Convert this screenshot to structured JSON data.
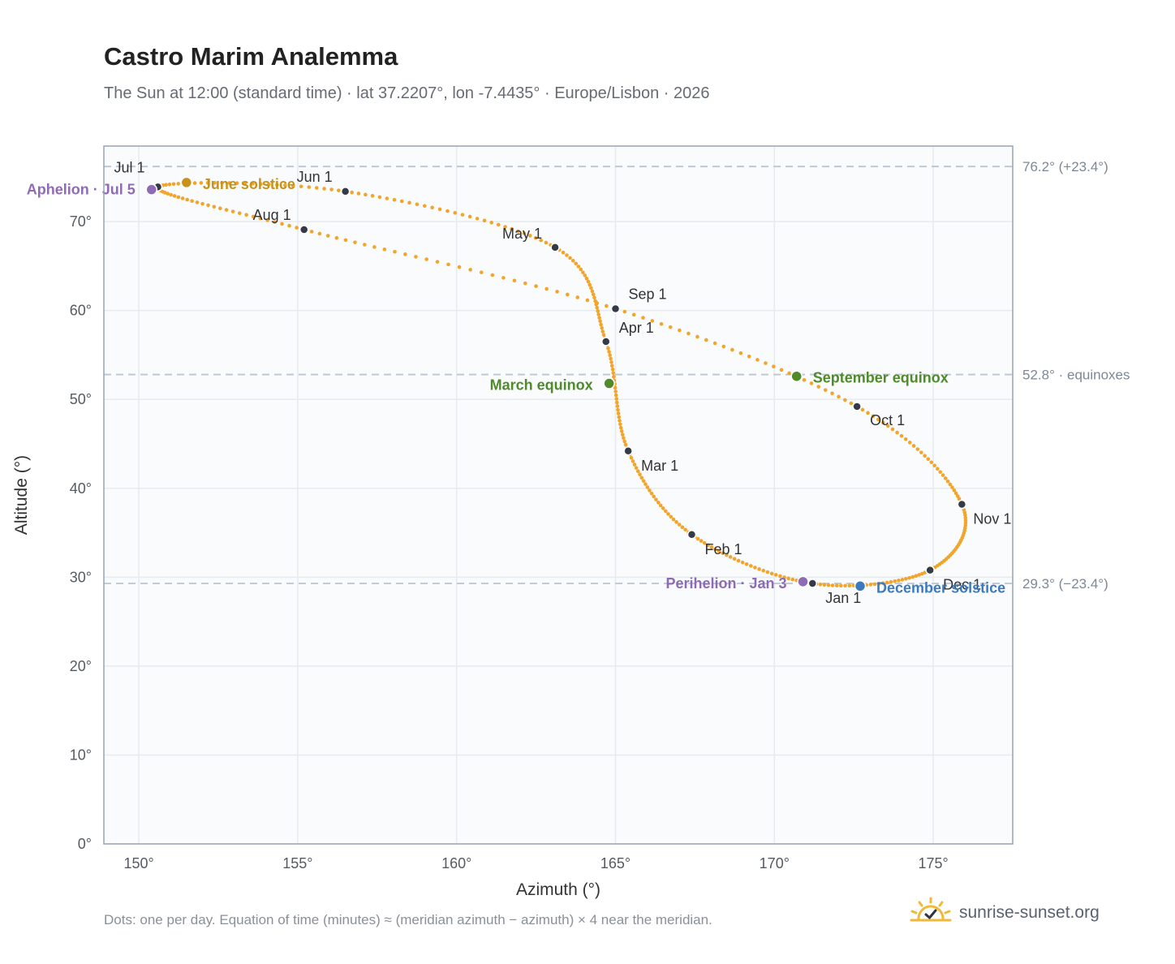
{
  "header": {
    "title": "Castro Marim Analemma",
    "subtitle": "The Sun at 12:00 (standard time) · lat 37.2207°, lon -7.4435° · Europe/Lisbon · 2026"
  },
  "footer": {
    "note": "Dots: one per day. Equation of time (minutes) ≈ (meridian azimuth − azimuth) × 4 near the meridian.",
    "brand": "sunrise-sunset.org",
    "brand_icon": "sun-icon"
  },
  "colors": {
    "path": "#f2a52a",
    "month_dot": "#343a46",
    "june_solstice": "#c8921a",
    "december_solstice": "#3a7bbf",
    "equinox": "#4f8a2b",
    "apsis": "#8e6bb5",
    "ref_line": "#b9c6d3",
    "plot_bg": "#f9fbfd",
    "frame": "#98a4b3"
  },
  "chart_data": {
    "type": "scatter",
    "xlabel": "Azimuth (°)",
    "ylabel": "Altitude (°)",
    "xlim": [
      148.9,
      177.5
    ],
    "ylim": [
      0,
      78.5
    ],
    "xticks": [
      150,
      155,
      160,
      165,
      170,
      175
    ],
    "yticks": [
      0,
      10,
      20,
      30,
      40,
      50,
      60,
      70
    ],
    "tick_suffix": "°",
    "grid": true,
    "reference_lines": [
      {
        "y": 76.2,
        "label": "76.2° (+23.4°)"
      },
      {
        "y": 52.8,
        "label": "52.8° · equinoxes"
      },
      {
        "y": 29.3,
        "label": "29.3° (−23.4°)"
      }
    ],
    "series": [
      {
        "marker": "daily dots",
        "points": [
          {
            "date": "Jan 1",
            "az": 171.2,
            "alt": 29.3
          },
          {
            "date": "Feb 1",
            "az": 167.4,
            "alt": 34.8
          },
          {
            "date": "Mar 1",
            "az": 165.4,
            "alt": 44.2
          },
          {
            "date": "Apr 1",
            "az": 164.7,
            "alt": 56.5
          },
          {
            "date": "May 1",
            "az": 163.1,
            "alt": 67.1
          },
          {
            "date": "Jun 1",
            "az": 156.5,
            "alt": 73.4
          },
          {
            "date": "Jul 1",
            "az": 150.6,
            "alt": 73.9
          },
          {
            "date": "Aug 1",
            "az": 155.2,
            "alt": 69.1
          },
          {
            "date": "Sep 1",
            "az": 165.0,
            "alt": 60.2
          },
          {
            "date": "Oct 1",
            "az": 172.6,
            "alt": 49.2
          },
          {
            "date": "Nov 1",
            "az": 175.9,
            "alt": 38.2
          },
          {
            "date": "Dec 1",
            "az": 174.9,
            "alt": 30.8
          }
        ]
      }
    ],
    "events": [
      {
        "key": "june_solstice",
        "label": "June solstice",
        "az": 151.5,
        "alt": 74.4
      },
      {
        "key": "september_equinox",
        "label": "September equinox",
        "az": 170.7,
        "alt": 52.6
      },
      {
        "key": "december_solstice",
        "label": "December solstice",
        "az": 172.7,
        "alt": 29.0
      },
      {
        "key": "march_equinox",
        "label": "March equinox",
        "az": 164.8,
        "alt": 51.8
      },
      {
        "key": "perihelion",
        "label": "Perihelion · Jan 3",
        "az": 170.9,
        "alt": 29.5
      },
      {
        "key": "aphelion",
        "label": "Aphelion · Jul 5",
        "az": 150.4,
        "alt": 73.6
      }
    ]
  }
}
